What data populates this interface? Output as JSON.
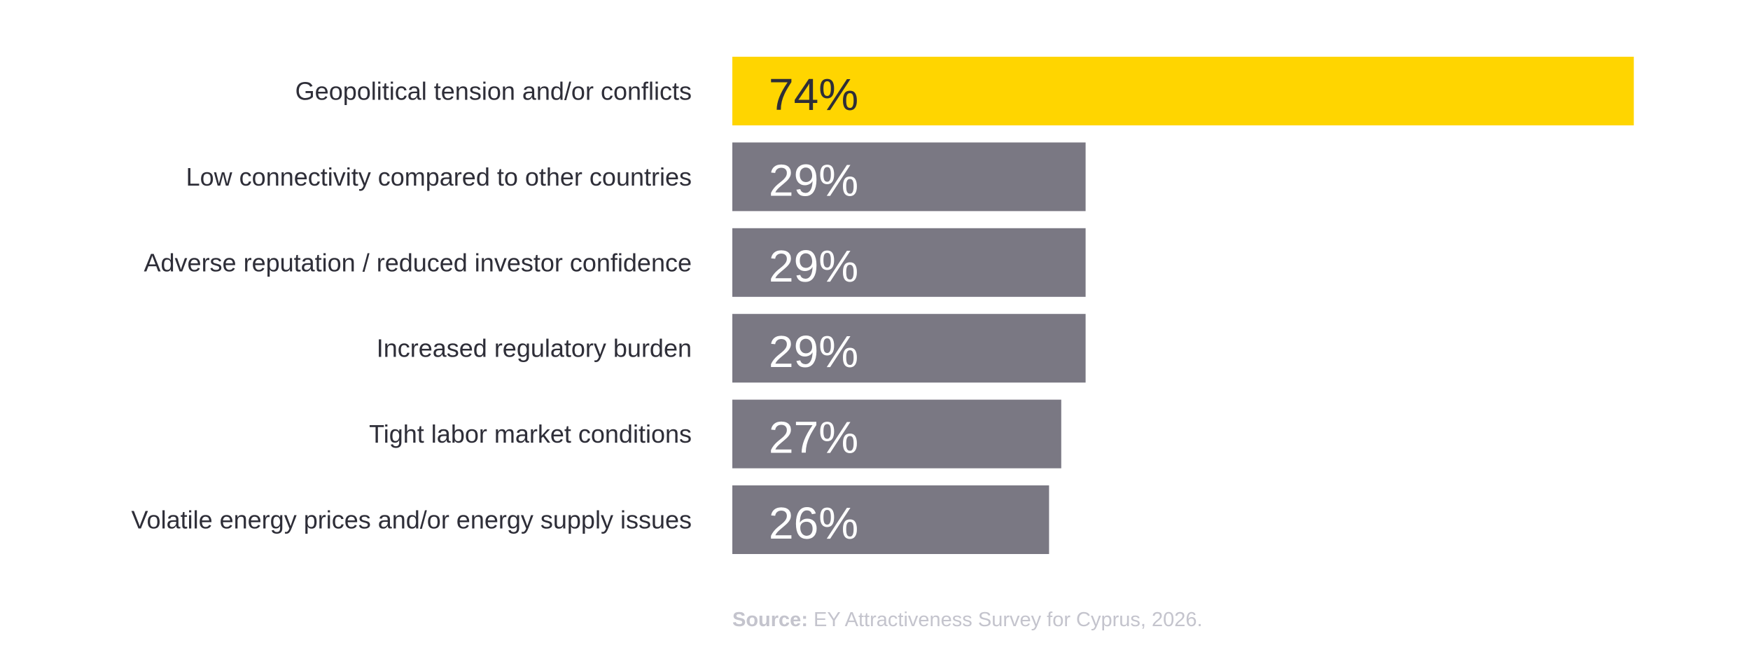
{
  "chart_data": {
    "type": "bar",
    "orientation": "horizontal",
    "categories": [
      "Geopolitical tension and/or conflicts",
      "Low connectivity compared to other countries",
      "Adverse reputation / reduced investor confidence",
      "Increased regulatory burden",
      "Tight labor market conditions",
      "Volatile energy prices and/or energy supply issues"
    ],
    "values": [
      74,
      29,
      29,
      29,
      27,
      26
    ],
    "value_labels": [
      "74%",
      "29%",
      "29%",
      "29%",
      "27%",
      "26%"
    ],
    "xlim": [
      0,
      100
    ],
    "grid": false,
    "legend": "none",
    "colors": {
      "highlight": "#ffd500",
      "default": "#7a7883",
      "label_on_highlight": "#2e2e38",
      "label_on_default": "#ffffff",
      "category_text": "#2e2e38",
      "source_text": "#c4c4cd"
    }
  },
  "source": {
    "prefix": "Source:",
    "text": " EY Attractiveness Survey for Cyprus, 2026."
  }
}
